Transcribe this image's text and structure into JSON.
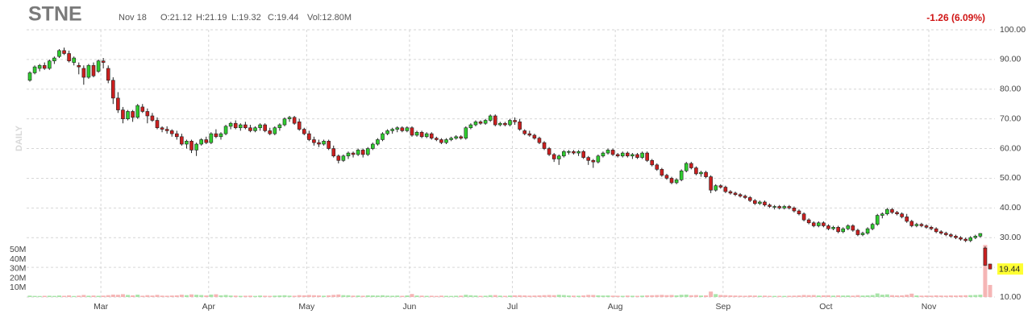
{
  "chart_data": {
    "type": "candlestick",
    "title": "STNE",
    "date": "Nov 18",
    "quote": [
      "O:21.12",
      "H:21.19",
      "L:19.32",
      "C:19.44",
      "Vol:12.80M"
    ],
    "change": "-1.26 (6.09%)",
    "period": "DAILY",
    "last_label": "19.44",
    "up_color": "#2fcc2f",
    "down_color": "#cc1f1f",
    "up_volume_color": "#a9e4a9",
    "down_volume_color": "#f5b5b5",
    "ylim": [
      10,
      100
    ],
    "yticks": [
      {
        "value": 10,
        "label": "10.00"
      },
      {
        "value": 20,
        "label": "20.00"
      },
      {
        "value": 30,
        "label": "30.00"
      },
      {
        "value": 40,
        "label": "40.00"
      },
      {
        "value": 50,
        "label": "50.00"
      },
      {
        "value": 60,
        "label": "60.00"
      },
      {
        "value": 70,
        "label": "70.00"
      },
      {
        "value": 80,
        "label": "80.00"
      },
      {
        "value": 90,
        "label": "90.00"
      },
      {
        "value": 100,
        "label": "100.00"
      }
    ],
    "volume_ylim": [
      0,
      60
    ],
    "volume_ticks": [
      {
        "value": 10,
        "label": "10M"
      },
      {
        "value": 20,
        "label": "20M"
      },
      {
        "value": 30,
        "label": "30M"
      },
      {
        "value": 40,
        "label": "40M"
      },
      {
        "value": 50,
        "label": "50M"
      }
    ],
    "grid": true,
    "categories": [
      null,
      null,
      null,
      null,
      null,
      null,
      null,
      null,
      null,
      null,
      null,
      null,
      null,
      null,
      null,
      "Mar",
      null,
      null,
      null,
      null,
      null,
      null,
      null,
      null,
      null,
      null,
      null,
      null,
      null,
      null,
      null,
      null,
      null,
      null,
      null,
      null,
      null,
      "Apr",
      null,
      null,
      null,
      null,
      null,
      null,
      null,
      null,
      null,
      null,
      null,
      null,
      null,
      null,
      null,
      null,
      null,
      null,
      null,
      "May",
      null,
      null,
      null,
      null,
      null,
      null,
      null,
      null,
      null,
      null,
      null,
      null,
      null,
      null,
      null,
      null,
      null,
      null,
      null,
      null,
      "Jun",
      null,
      null,
      null,
      null,
      null,
      null,
      null,
      null,
      null,
      null,
      null,
      null,
      null,
      null,
      null,
      null,
      null,
      null,
      null,
      null,
      "Jul",
      null,
      null,
      null,
      null,
      null,
      null,
      null,
      null,
      null,
      null,
      null,
      null,
      null,
      null,
      null,
      null,
      null,
      null,
      null,
      null,
      "Aug",
      null,
      null,
      null,
      null,
      null,
      null,
      null,
      null,
      null,
      null,
      null,
      null,
      null,
      null,
      null,
      null,
      null,
      null,
      null,
      null,
      null,
      "Sep",
      null,
      null,
      null,
      null,
      null,
      null,
      null,
      null,
      null,
      null,
      null,
      null,
      null,
      null,
      null,
      null,
      null,
      null,
      null,
      null,
      "Oct",
      null,
      null,
      null,
      null,
      null,
      null,
      null,
      null,
      null,
      null,
      null,
      null,
      null,
      null,
      null,
      null,
      null,
      null,
      null,
      null,
      "Nov",
      null,
      null,
      null,
      null,
      null,
      null,
      null,
      null,
      null,
      null,
      null,
      null
    ],
    "candles": [
      [
        83,
        86,
        82.5,
        85.5,
        1.5
      ],
      [
        85.5,
        88,
        85,
        87.5,
        1.2
      ],
      [
        87,
        88.5,
        86,
        88,
        1.1
      ],
      [
        88,
        89,
        86.5,
        87,
        1.3
      ],
      [
        87,
        90,
        86.5,
        89.5,
        1.4
      ],
      [
        89.5,
        91,
        88.5,
        90.5,
        1.2
      ],
      [
        91,
        93.5,
        90.5,
        93,
        1.6
      ],
      [
        93,
        94,
        91.5,
        92,
        1.3
      ],
      [
        92,
        93,
        89,
        89.5,
        1.8
      ],
      [
        89,
        91,
        88,
        90.5,
        1.1
      ],
      [
        88,
        89,
        85,
        87.5,
        1.5
      ],
      [
        87,
        88,
        81.5,
        84,
        2.2
      ],
      [
        84,
        88.5,
        83.5,
        88,
        1.4
      ],
      [
        88,
        89,
        84,
        84.5,
        1.6
      ],
      [
        86,
        90,
        85.5,
        89.5,
        1.3
      ],
      [
        89.5,
        90.5,
        87,
        89,
        1.5
      ],
      [
        87,
        88,
        82,
        83,
        2.0
      ],
      [
        83,
        84,
        75,
        77,
        2.6
      ],
      [
        77,
        79,
        72,
        73,
        2.4
      ],
      [
        73,
        74,
        68.5,
        70,
        3.0
      ],
      [
        70,
        73,
        69.5,
        72.5,
        2.2
      ],
      [
        72.5,
        73,
        69,
        70.5,
        1.8
      ],
      [
        70.5,
        75,
        70,
        74.5,
        2.5
      ],
      [
        74,
        75,
        72,
        72.5,
        1.4
      ],
      [
        72.5,
        73.5,
        68.5,
        71,
        2.0
      ],
      [
        71,
        72,
        69,
        69.5,
        1.6
      ],
      [
        69.5,
        70.5,
        66.5,
        67,
        2.3
      ],
      [
        67,
        67.5,
        65.5,
        66.5,
        1.5
      ],
      [
        66.5,
        67.5,
        65,
        66,
        1.4
      ],
      [
        66,
        66.5,
        64,
        65,
        1.6
      ],
      [
        65,
        66,
        63,
        64,
        1.8
      ],
      [
        64,
        65,
        61,
        61.5,
        2.5
      ],
      [
        61.5,
        63,
        60,
        62.5,
        2.0
      ],
      [
        62.5,
        63,
        58.5,
        59.5,
        2.8
      ],
      [
        59.5,
        62,
        57.5,
        61.5,
        2.4
      ],
      [
        61.5,
        63.5,
        61,
        63,
        2.1
      ],
      [
        63,
        64,
        61.5,
        62,
        1.7
      ],
      [
        62,
        65.5,
        61.5,
        65,
        2.6
      ],
      [
        65,
        66.5,
        63.5,
        64,
        2.9
      ],
      [
        64,
        65.5,
        63,
        65,
        1.8
      ],
      [
        65,
        68,
        64.5,
        67.5,
        2.2
      ],
      [
        67.5,
        69,
        66.5,
        68.5,
        1.6
      ],
      [
        68.5,
        69.5,
        66.5,
        67,
        1.5
      ],
      [
        67,
        68.5,
        66,
        68,
        1.3
      ],
      [
        68,
        69,
        66.5,
        67,
        1.4
      ],
      [
        67,
        68,
        65.5,
        66,
        1.5
      ],
      [
        66,
        67.5,
        65.5,
        67,
        1.2
      ],
      [
        67,
        68.5,
        66,
        68,
        1.6
      ],
      [
        68,
        68.5,
        65.5,
        66,
        1.4
      ],
      [
        66,
        67,
        64.5,
        65,
        1.3
      ],
      [
        65,
        67.5,
        64.5,
        67,
        1.5
      ],
      [
        67,
        68.5,
        66,
        68,
        1.7
      ],
      [
        68,
        70.5,
        67.5,
        70,
        1.9
      ],
      [
        70,
        71,
        69,
        70.5,
        1.5
      ],
      [
        70.5,
        71,
        68,
        68.5,
        1.4
      ],
      [
        69,
        70,
        66,
        66.5,
        2.0
      ],
      [
        66.5,
        67,
        64.5,
        65,
        1.8
      ],
      [
        65,
        66,
        62.5,
        63,
        2.2
      ],
      [
        63,
        64,
        61,
        62,
        1.9
      ],
      [
        62,
        63,
        60.5,
        61.5,
        1.7
      ],
      [
        61.5,
        63,
        61,
        62.5,
        1.4
      ],
      [
        62.5,
        63,
        59.5,
        60,
        1.8
      ],
      [
        60,
        61,
        57,
        57.5,
        2.3
      ],
      [
        57.5,
        58,
        55,
        56,
        2.7
      ],
      [
        56,
        58,
        55.5,
        57.5,
        2.0
      ],
      [
        57.5,
        59,
        56.5,
        58.5,
        1.9
      ],
      [
        58.5,
        59,
        57,
        58,
        1.5
      ],
      [
        58,
        60,
        57.5,
        59.5,
        1.6
      ],
      [
        59.5,
        60,
        57,
        58,
        1.4
      ],
      [
        58,
        60.5,
        57.5,
        60,
        1.8
      ],
      [
        60,
        62,
        59.5,
        61.5,
        1.7
      ],
      [
        61.5,
        63.5,
        61,
        63,
        1.6
      ],
      [
        63,
        65.5,
        62.5,
        65,
        1.9
      ],
      [
        65,
        66.5,
        64.5,
        66,
        1.5
      ],
      [
        66,
        67,
        65,
        66.5,
        1.4
      ],
      [
        66.5,
        67.5,
        65.5,
        67,
        1.6
      ],
      [
        67,
        67.5,
        65.5,
        66,
        1.3
      ],
      [
        66,
        67.5,
        65.5,
        67,
        1.7
      ],
      [
        67,
        67.5,
        64,
        64.5,
        3.2
      ],
      [
        64.5,
        66,
        64,
        65.5,
        1.6
      ],
      [
        65.5,
        66,
        63.5,
        64,
        1.5
      ],
      [
        64,
        65.5,
        63.5,
        65,
        1.3
      ],
      [
        65,
        65.5,
        63,
        63.5,
        1.4
      ],
      [
        63.5,
        64,
        62.5,
        63,
        1.2
      ],
      [
        63,
        63.5,
        61.5,
        62,
        1.5
      ],
      [
        62,
        63.5,
        61.5,
        63,
        1.3
      ],
      [
        63,
        64,
        62.5,
        63.5,
        1.2
      ],
      [
        63.5,
        64.5,
        63,
        64,
        1.4
      ],
      [
        64,
        64.5,
        63,
        63.5,
        1.5
      ],
      [
        63.5,
        67.5,
        63,
        67,
        2.4
      ],
      [
        67,
        68.5,
        66.5,
        68,
        1.9
      ],
      [
        68,
        69.5,
        67.5,
        69,
        1.6
      ],
      [
        69,
        69.5,
        68,
        68.5,
        1.3
      ],
      [
        68.5,
        70,
        68,
        69.5,
        1.4
      ],
      [
        69.5,
        71.5,
        69,
        71,
        2.0
      ],
      [
        71,
        71.5,
        67.5,
        68,
        2.1
      ],
      [
        68,
        69,
        67.5,
        68.5,
        1.5
      ],
      [
        68.5,
        69,
        67.5,
        68,
        1.3
      ],
      [
        68,
        70,
        67.5,
        69.5,
        1.6
      ],
      [
        69.5,
        70.5,
        68,
        69,
        1.8
      ],
      [
        69,
        70,
        66,
        66.5,
        1.9
      ],
      [
        66,
        66.5,
        64.5,
        65,
        1.7
      ],
      [
        65,
        66,
        64,
        64.5,
        1.5
      ],
      [
        64.5,
        65,
        63,
        63.5,
        1.6
      ],
      [
        63.5,
        64,
        61.5,
        62,
        1.8
      ],
      [
        62,
        62.5,
        59.5,
        60,
        2.0
      ],
      [
        60,
        60.5,
        57.5,
        58,
        2.2
      ],
      [
        58,
        58.5,
        55.5,
        56.5,
        2.0
      ],
      [
        56.5,
        58,
        54.5,
        57.5,
        2.4
      ],
      [
        57.5,
        59.5,
        57,
        59,
        2.1
      ],
      [
        59,
        59.5,
        58,
        59,
        1.6
      ],
      [
        59,
        59.5,
        58,
        58.5,
        1.5
      ],
      [
        58.5,
        59.5,
        57.5,
        59,
        1.4
      ],
      [
        59,
        59.5,
        56.5,
        57,
        1.7
      ],
      [
        57,
        57.5,
        54.5,
        56,
        2.3
      ],
      [
        56,
        56.5,
        53.5,
        55.5,
        2.2
      ],
      [
        55.5,
        58,
        55,
        57.5,
        1.8
      ],
      [
        57.5,
        59,
        57,
        58.5,
        1.6
      ],
      [
        58.5,
        60,
        58,
        59.5,
        1.7
      ],
      [
        59.5,
        60,
        57.5,
        58,
        1.5
      ],
      [
        58,
        58.5,
        57,
        57.5,
        1.4
      ],
      [
        57.5,
        59,
        57,
        58.5,
        1.3
      ],
      [
        58.5,
        59,
        57,
        57.5,
        1.6
      ],
      [
        57.5,
        58.5,
        56.5,
        58,
        1.4
      ],
      [
        58,
        58.5,
        56.5,
        57,
        1.3
      ],
      [
        57,
        59,
        56.5,
        58.5,
        1.5
      ],
      [
        58.5,
        59,
        55.5,
        56,
        1.8
      ],
      [
        56,
        56.5,
        54,
        54.5,
        1.9
      ],
      [
        54.5,
        55,
        52.5,
        53,
        2.1
      ],
      [
        53,
        53.5,
        50.5,
        51,
        2.3
      ],
      [
        51,
        51.5,
        49.5,
        50,
        2.0
      ],
      [
        50,
        50.5,
        48,
        48.5,
        2.2
      ],
      [
        48.5,
        50,
        48,
        49.5,
        1.8
      ],
      [
        49.5,
        53,
        49,
        52.5,
        2.4
      ],
      [
        52.5,
        55.5,
        52,
        55,
        2.6
      ],
      [
        55,
        55.5,
        53,
        53.5,
        1.9
      ],
      [
        53.5,
        54,
        51,
        51.5,
        2.1
      ],
      [
        51.5,
        52.5,
        50.5,
        52,
        1.6
      ],
      [
        52,
        52.5,
        50,
        50.5,
        1.8
      ],
      [
        50.5,
        51,
        45,
        46,
        5.8
      ],
      [
        46,
        48,
        45.5,
        47.5,
        3.1
      ],
      [
        47.5,
        48,
        46.5,
        47,
        2.2
      ],
      [
        47,
        47.5,
        45,
        45.5,
        2.0
      ],
      [
        45.5,
        46,
        44.5,
        45,
        1.8
      ],
      [
        45,
        45.5,
        44,
        44.5,
        1.6
      ],
      [
        44.5,
        45,
        43.5,
        44,
        1.5
      ],
      [
        44,
        44.5,
        43,
        43.5,
        1.4
      ],
      [
        43.5,
        44,
        42,
        42.5,
        1.7
      ],
      [
        42.5,
        43,
        41,
        41.5,
        1.6
      ],
      [
        41.5,
        42.5,
        41,
        42,
        1.4
      ],
      [
        42,
        42.5,
        40.5,
        41,
        1.5
      ],
      [
        41,
        41.5,
        40,
        40.5,
        1.3
      ],
      [
        40.5,
        41,
        39.5,
        40.5,
        1.2
      ],
      [
        40.5,
        41,
        39.5,
        40,
        1.3
      ],
      [
        40,
        41,
        39.5,
        40.5,
        1.2
      ],
      [
        40.5,
        41,
        39.5,
        40,
        1.4
      ],
      [
        40,
        40.5,
        38.5,
        39,
        1.5
      ],
      [
        39,
        39.5,
        37.5,
        38,
        1.7
      ],
      [
        38,
        38.5,
        35.5,
        36,
        2.2
      ],
      [
        36,
        36.5,
        34.5,
        35,
        2.0
      ],
      [
        35,
        35.5,
        33.5,
        34,
        2.1
      ],
      [
        34,
        35.5,
        33.5,
        35,
        1.6
      ],
      [
        35,
        35.5,
        33.5,
        34,
        1.8
      ],
      [
        34,
        34.5,
        32.5,
        33,
        1.9
      ],
      [
        33,
        34,
        32.5,
        33.5,
        1.5
      ],
      [
        33.5,
        34,
        31.5,
        32,
        1.8
      ],
      [
        32,
        33.5,
        31.5,
        33,
        1.6
      ],
      [
        33,
        34.5,
        32.5,
        34,
        1.7
      ],
      [
        34,
        34.5,
        32,
        32.5,
        1.5
      ],
      [
        32.5,
        33,
        30.5,
        31,
        2.0
      ],
      [
        31,
        32,
        30.5,
        31.5,
        1.6
      ],
      [
        31.5,
        33.5,
        31,
        33,
        1.8
      ],
      [
        33,
        35,
        32.5,
        34.5,
        2.1
      ],
      [
        34.5,
        38,
        34,
        37.5,
        3.8
      ],
      [
        37.5,
        38.5,
        36.5,
        38,
        2.5
      ],
      [
        38,
        40,
        37.5,
        39.5,
        2.8
      ],
      [
        39.5,
        40,
        38,
        38.5,
        2.0
      ],
      [
        38.5,
        39,
        37.5,
        38,
        1.7
      ],
      [
        38,
        38.5,
        36.5,
        37,
        1.8
      ],
      [
        37,
        38,
        35,
        35.5,
        2.4
      ],
      [
        35.5,
        36,
        33.5,
        34,
        3.6
      ],
      [
        34,
        35,
        33.5,
        34.5,
        1.7
      ],
      [
        34.5,
        35,
        33.5,
        34,
        1.5
      ],
      [
        34,
        34.5,
        33,
        33.5,
        1.6
      ],
      [
        33.5,
        34,
        32.5,
        33,
        1.5
      ],
      [
        33,
        33.5,
        31.5,
        32,
        1.8
      ],
      [
        32,
        32.5,
        31,
        31.5,
        1.6
      ],
      [
        31.5,
        32,
        30.5,
        31,
        1.5
      ],
      [
        31,
        31.5,
        30,
        30.5,
        1.7
      ],
      [
        30.5,
        31,
        29.5,
        30,
        1.6
      ],
      [
        30,
        30.5,
        29,
        29.5,
        1.8
      ],
      [
        29.5,
        30,
        28.5,
        29,
        1.9
      ],
      [
        29,
        30.5,
        28.5,
        30,
        2.0
      ],
      [
        30,
        31,
        29.5,
        30.5,
        2.2
      ],
      [
        30.5,
        31.5,
        30,
        31.4,
        2.5
      ],
      [
        26.5,
        27,
        20.5,
        20.7,
        55
      ],
      [
        21.12,
        21.19,
        19.32,
        19.44,
        12.8
      ]
    ]
  }
}
